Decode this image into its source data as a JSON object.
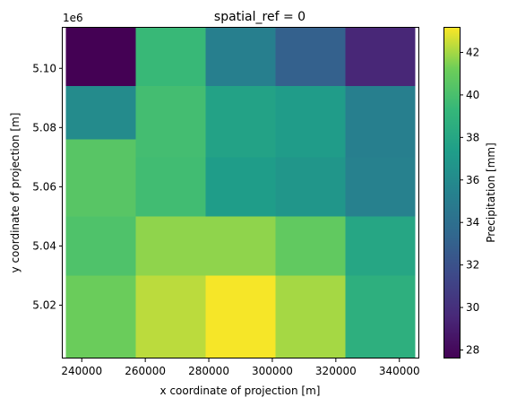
{
  "chart_data": {
    "type": "heatmap",
    "title": "spatial_ref = 0",
    "xlabel": "x coordinate of projection [m]",
    "ylabel": "y coordinate of projection [m]",
    "y_offset_label": "1e6",
    "colorbar_label": "Precipitation [mm]",
    "x_centers": [
      246000,
      268000,
      290000,
      312000,
      334000
    ],
    "x_cell_width": 22000,
    "y_centers": [
      5102000,
      5082000,
      5062000,
      5042000,
      5022000
    ],
    "y_cell_edges": [
      5114000,
      5094000,
      5070000,
      5050000,
      5030000,
      5002000
    ],
    "xlim": [
      234000,
      346000
    ],
    "ylim": [
      5002000,
      5114000
    ],
    "x_ticks": [
      240000,
      260000,
      280000,
      300000,
      320000,
      340000
    ],
    "x_tick_labels": [
      "240000",
      "260000",
      "280000",
      "300000",
      "320000",
      "340000"
    ],
    "y_ticks": [
      5020000,
      5040000,
      5060000,
      5080000,
      5100000
    ],
    "y_tick_labels": [
      "5.02",
      "5.04",
      "5.06",
      "5.08",
      "5.10"
    ],
    "values": [
      [
        27.6,
        39.4,
        35.2,
        33.0,
        29.5
      ],
      [
        36.0,
        39.8,
        37.7,
        37.2,
        35.2
      ],
      [
        40.5,
        39.7,
        37.3,
        36.8,
        35.3
      ],
      [
        40.2,
        41.7,
        41.7,
        40.8,
        38.0
      ],
      [
        41.1,
        42.3,
        43.1,
        42.0,
        38.7
      ]
    ],
    "special_cells": [
      {
        "row": 1,
        "col": 0,
        "y_bottom": 5076000
      },
      {
        "row": 2,
        "col": 0,
        "y_top": 5076000
      }
    ],
    "vmin": 27.6,
    "vmax": 43.2,
    "colorbar_ticks": [
      28,
      30,
      32,
      34,
      36,
      38,
      40,
      42
    ],
    "colorbar_tick_labels": [
      "28",
      "30",
      "32",
      "34",
      "36",
      "38",
      "40",
      "42"
    ],
    "colormap": "viridis"
  }
}
